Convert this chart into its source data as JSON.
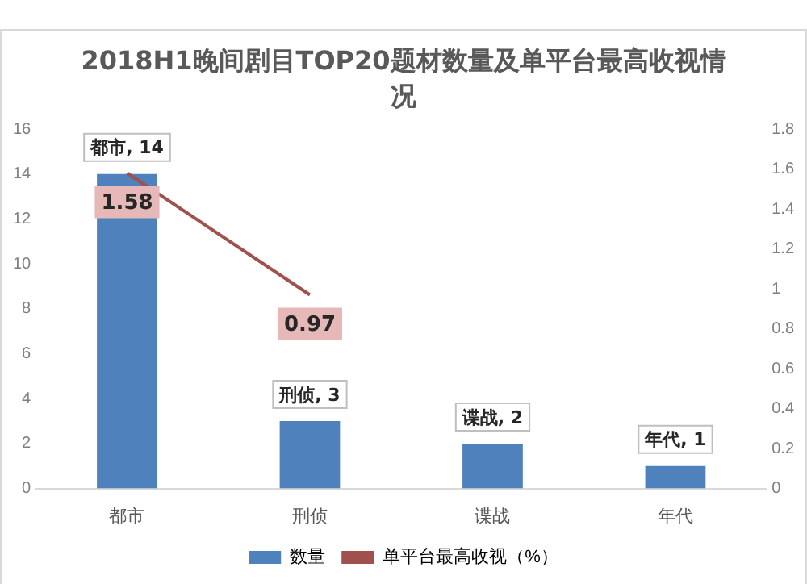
{
  "chart_data": {
    "type": "bar",
    "title": "2018H1晚间剧目TOP20题材数量及单平台最高收视情况",
    "categories": [
      "都市",
      "刑侦",
      "谍战",
      "年代"
    ],
    "series": [
      {
        "name": "数量",
        "color": "#4f81bd",
        "values": [
          14,
          3,
          2,
          1
        ],
        "value_labels": [
          "都市, 14",
          "刑侦, 3",
          "谍战, 2",
          "年代, 1"
        ]
      },
      {
        "name": "单平台最高收视（%）",
        "type": "line",
        "axis": "y2",
        "color": "#a0504d",
        "values": [
          1.58,
          0.97,
          null,
          null
        ],
        "value_labels": [
          "1.58",
          "0.97",
          null,
          null
        ]
      }
    ],
    "ylim": [
      0,
      16
    ],
    "yticks": [
      0,
      2,
      4,
      6,
      8,
      10,
      12,
      14,
      16
    ],
    "y2lim": [
      0,
      1.8
    ],
    "y2ticks": [
      0,
      {
        "value": 0.2,
        "label": "0.2"
      },
      {
        "value": 0.4,
        "label": "0.4"
      },
      {
        "value": 0.6,
        "label": "0.6"
      },
      {
        "value": 0.8,
        "label": "0.8"
      },
      {
        "value": 1,
        "label": "1"
      },
      {
        "value": 1.2,
        "label": "1.2"
      },
      {
        "value": 1.4,
        "label": "1.4"
      },
      {
        "value": 1.6,
        "label": "1.6"
      },
      {
        "value": 1.8,
        "label": "1.8"
      }
    ],
    "legend": "bottom",
    "grid": false,
    "marker": "none"
  }
}
